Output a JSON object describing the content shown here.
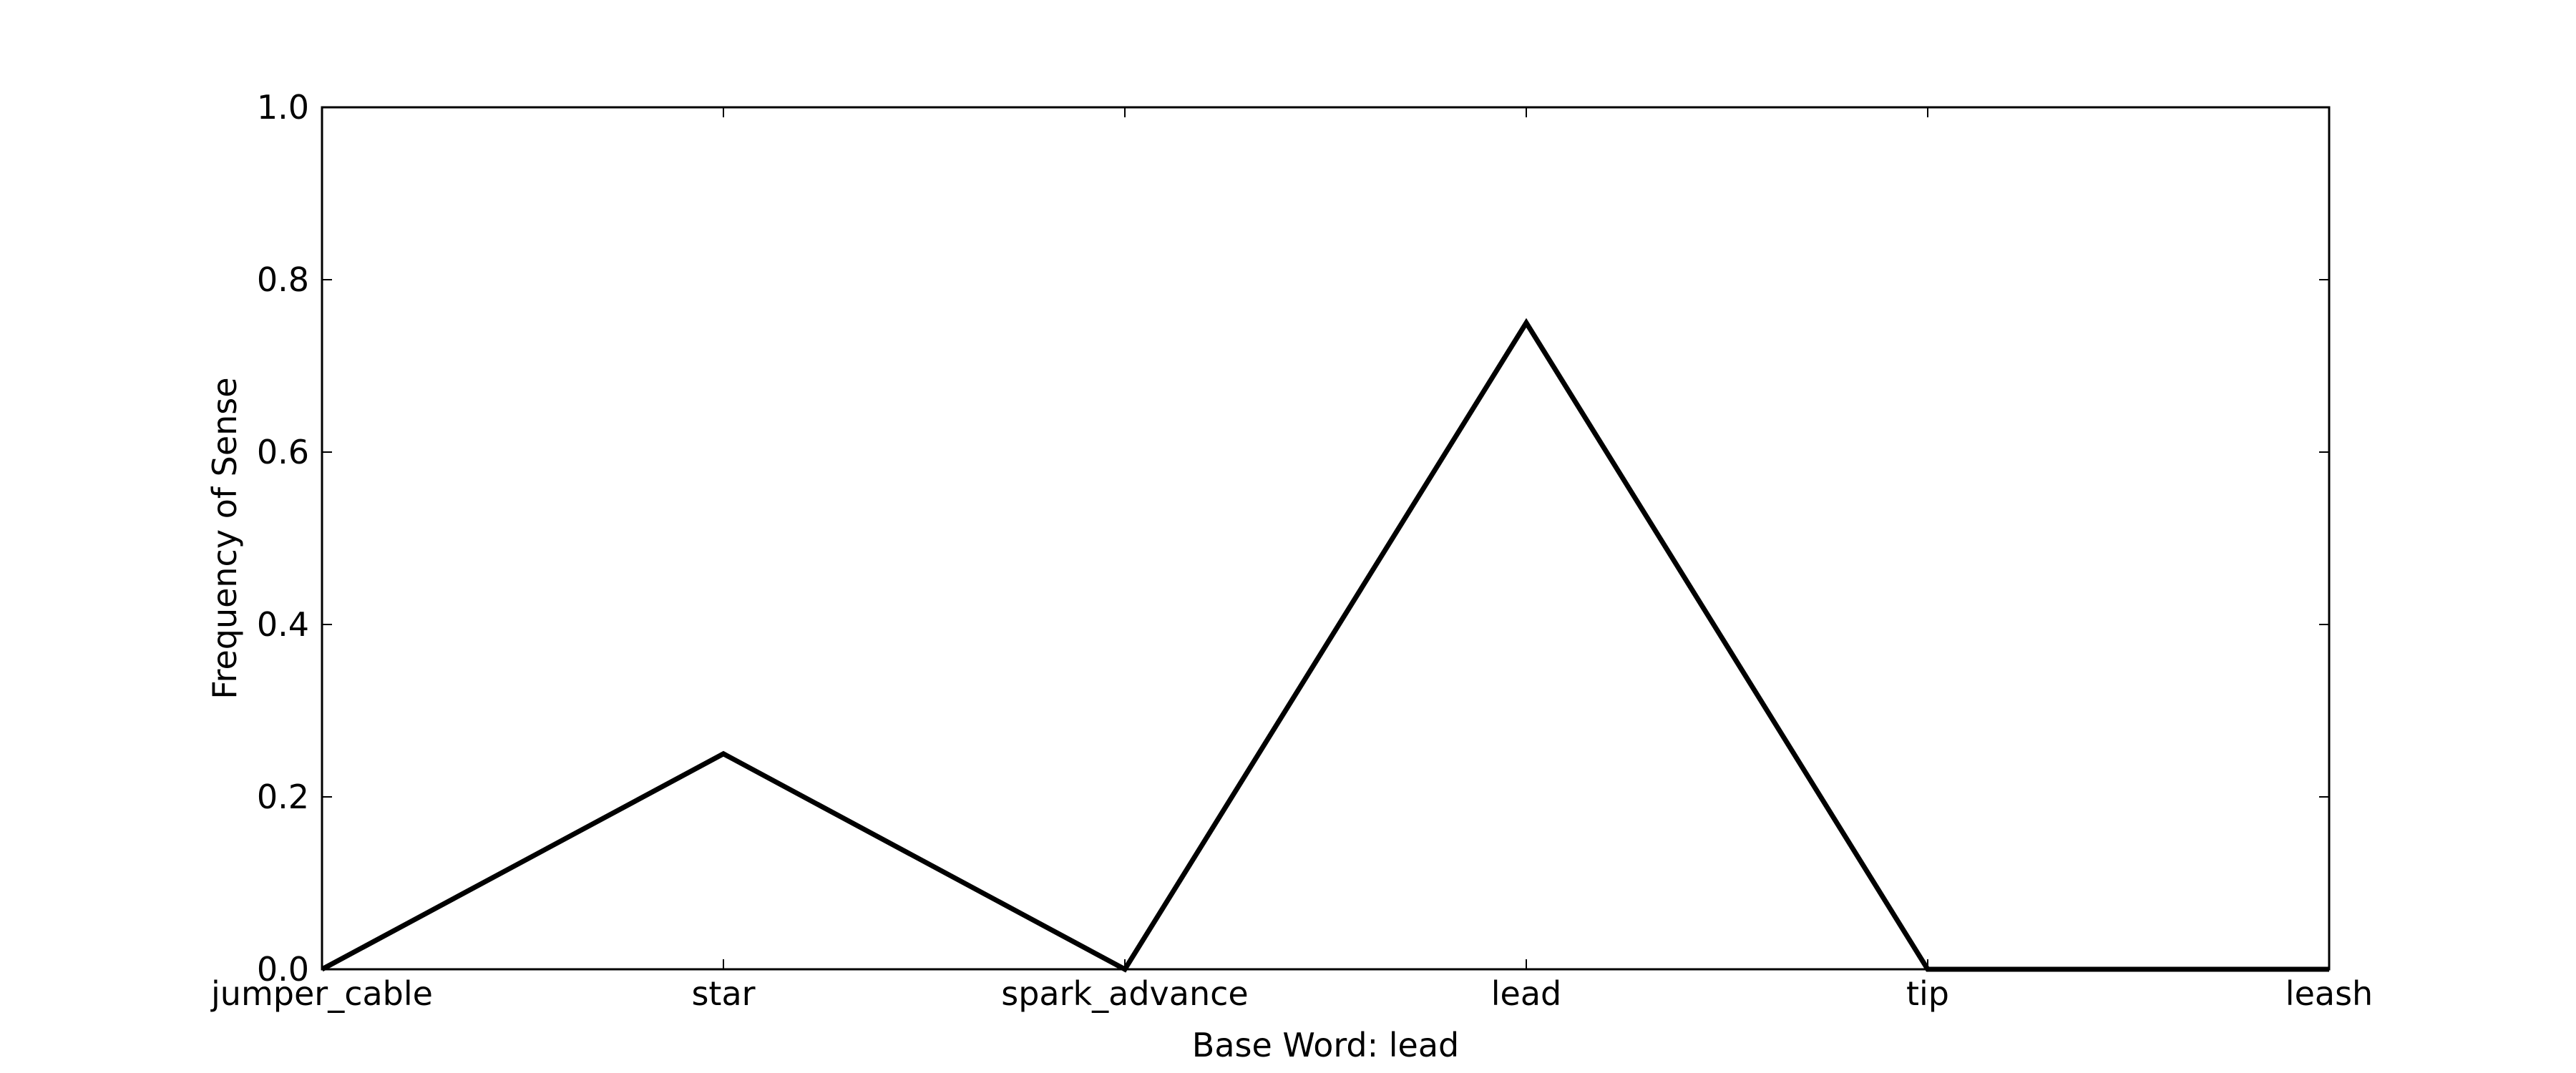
{
  "chart_data": {
    "type": "line",
    "title": "",
    "xlabel": "Base Word: lead",
    "ylabel": "Frequency of Sense",
    "categories": [
      "jumper_cable",
      "star",
      "spark_advance",
      "lead",
      "tip",
      "leash"
    ],
    "series": [
      {
        "values": [
          0.0,
          0.25,
          0.0,
          0.75,
          0.0,
          0.0
        ]
      }
    ],
    "ylim": [
      0.0,
      1.0
    ],
    "yticks": [
      "0.0",
      "0.2",
      "0.4",
      "0.6",
      "0.8",
      "1.0"
    ],
    "grid": false,
    "legend": "none",
    "line_color": "#000000"
  }
}
